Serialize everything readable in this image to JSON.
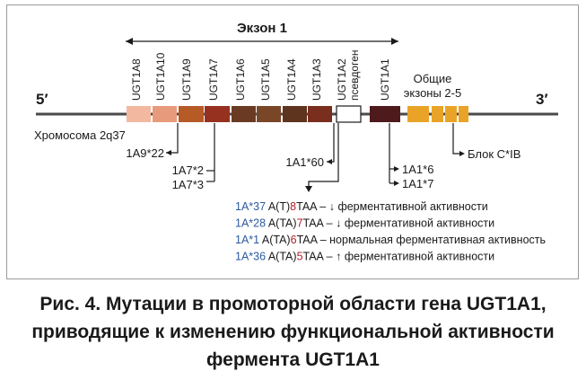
{
  "exon1_label": "Экзон 1",
  "chromosome_label": "Хромосома 2q37",
  "end_5": "5′",
  "end_3": "3′",
  "common_exons_line1": "Общие",
  "common_exons_line2": "экзоны 2-5",
  "pseudogene_line1": "UGT1A2",
  "pseudogene_line2": "псевдоген",
  "genes": [
    {
      "label": "UGT1A8",
      "color": "#f2b9a0"
    },
    {
      "label": "UGT1A10",
      "color": "#e89a7c"
    },
    {
      "label": "UGT1A9",
      "color": "#b65a26"
    },
    {
      "label": "UGT1A7",
      "color": "#96311f"
    },
    {
      "label": "UGT1A6",
      "color": "#6b3a22"
    },
    {
      "label": "UGT1A5",
      "color": "#7a4628"
    },
    {
      "label": "UGT1A4",
      "color": "#5e341e"
    },
    {
      "label": "UGT1A3",
      "color": "#7a2f1e"
    },
    {
      "label": "UGT1A2",
      "color": "#ffffff"
    },
    {
      "label": "UGT1A1",
      "color": "#4e1a1c"
    }
  ],
  "common_exon_color": "#e9a427",
  "labels": {
    "a9_22": "1A9*22",
    "a7_2": "1A7*2",
    "a7_3": "1A7*3",
    "a1_60": "1A1*60",
    "a1_6": "1A1*6",
    "a1_7": "1A1*7",
    "block": "Блок C*IB"
  },
  "variants": [
    {
      "allele": "1A*37",
      "pre": "A(T)",
      "num": "8",
      "post": "TAA –",
      "arrow": "↓",
      "desc": "ферментативной активности"
    },
    {
      "allele": "1A*28",
      "pre": "A(TA)",
      "num": "7",
      "post": "TAA –",
      "arrow": "↓",
      "desc": "ферментативной активности"
    },
    {
      "allele": "1A*1",
      "pre": "A(TA)",
      "num": "6",
      "post": "TAA –",
      "arrow": "",
      "desc": "нормальная ферментативная активность"
    },
    {
      "allele": "1A*36",
      "pre": "A(TA)",
      "num": "5",
      "post": "TAA –",
      "arrow": "↑",
      "desc": "ферментативной активности"
    }
  ],
  "colors": {
    "allele": "#2d5aa0",
    "repeat_number": "#b01e28",
    "text": "#1a1a1a",
    "chromosome_line": "#4a4a4a"
  },
  "caption": {
    "line1": "Рис. 4. Мутации в промоторной области гена UGT1A1,",
    "line2": "приводящие к изменению функциональной активности",
    "line3": "фермента UGT1A1"
  }
}
